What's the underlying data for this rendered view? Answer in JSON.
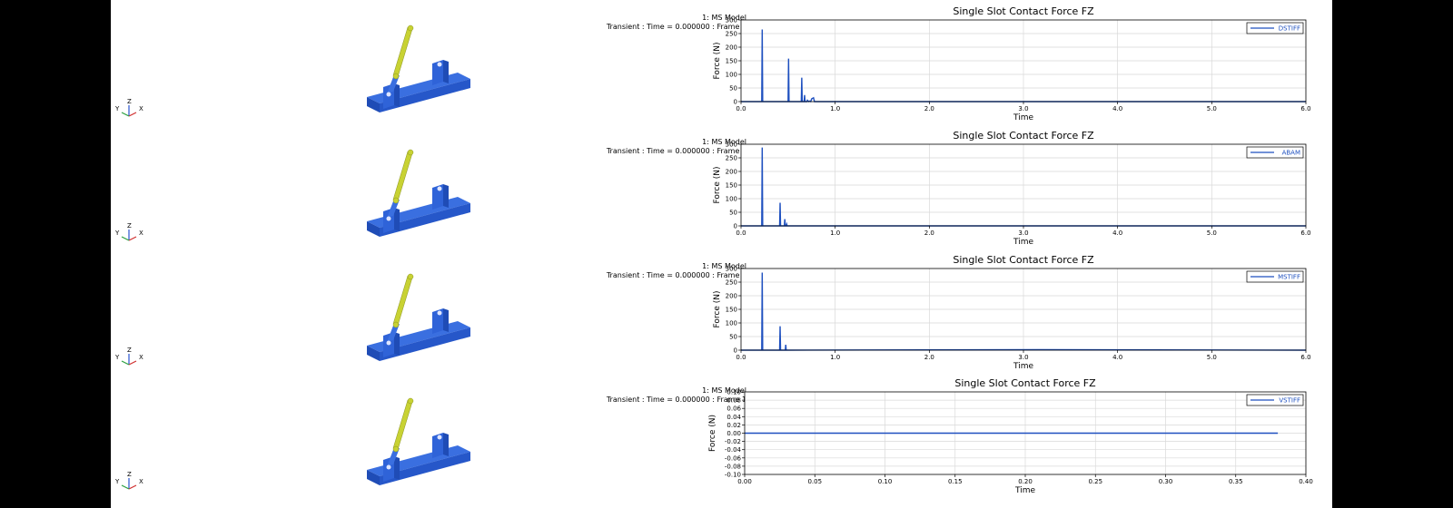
{
  "model_label": "1: MS Model",
  "frame_label": "Transient : Time = 0.000000 : Frame 1",
  "triad": {
    "z": "Z",
    "x": "X",
    "y": "Y"
  },
  "colors": {
    "series": "#1d4fbf",
    "base_blue": "#2f63d8",
    "link_yellow": "#c8d233",
    "grid": "#d9d9d9"
  },
  "chart_data": [
    {
      "type": "line",
      "title": "Single Slot Contact Force FZ",
      "xlabel": "Time",
      "ylabel": "Force (N)",
      "xlim": [
        0,
        6
      ],
      "ylim": [
        0,
        300
      ],
      "xticks": [
        0,
        1,
        2,
        3,
        4,
        5,
        6
      ],
      "xtick_labels": [
        "0.0",
        "1.0",
        "2.0",
        "3.0",
        "4.0",
        "5.0",
        "6.0"
      ],
      "yticks": [
        0,
        50,
        100,
        150,
        200,
        250,
        300
      ],
      "ytick_labels": [
        "0",
        "50",
        "100",
        "150",
        "200",
        "250",
        "300"
      ],
      "grid": true,
      "legend_position": "top-right",
      "series": [
        {
          "name": "DSTIFF",
          "x": [
            0,
            0.22,
            0.225,
            0.23,
            0.5,
            0.505,
            0.51,
            0.64,
            0.645,
            0.65,
            0.67,
            0.675,
            0.68,
            0.7,
            0.705,
            0.72,
            0.73,
            0.74,
            0.75,
            0.77,
            0.78,
            0.8,
            6.0
          ],
          "y": [
            0,
            0,
            265,
            0,
            0,
            158,
            0,
            0,
            88,
            0,
            0,
            24,
            0,
            0,
            5,
            0,
            2,
            0,
            10,
            14,
            0,
            0,
            0
          ]
        }
      ]
    },
    {
      "type": "line",
      "title": "Single Slot Contact Force FZ",
      "xlabel": "Time",
      "ylabel": "Force (N)",
      "xlim": [
        0,
        6
      ],
      "ylim": [
        0,
        300
      ],
      "xticks": [
        0,
        1,
        2,
        3,
        4,
        5,
        6
      ],
      "xtick_labels": [
        "0.0",
        "1.0",
        "2.0",
        "3.0",
        "4.0",
        "5.0",
        "6.0"
      ],
      "yticks": [
        0,
        50,
        100,
        150,
        200,
        250,
        300
      ],
      "ytick_labels": [
        "0",
        "50",
        "100",
        "150",
        "200",
        "250",
        "300"
      ],
      "grid": true,
      "legend_position": "top-right",
      "series": [
        {
          "name": "ABAM",
          "x": [
            0,
            0.22,
            0.225,
            0.23,
            0.41,
            0.415,
            0.42,
            0.46,
            0.465,
            0.47,
            0.48,
            0.485,
            0.49,
            6.0
          ],
          "y": [
            0,
            0,
            288,
            0,
            0,
            85,
            0,
            0,
            25,
            0,
            0,
            6,
            0,
            0
          ]
        }
      ]
    },
    {
      "type": "line",
      "title": "Single Slot Contact Force FZ",
      "xlabel": "Time",
      "ylabel": "Force (N)",
      "xlim": [
        0,
        6
      ],
      "ylim": [
        0,
        300
      ],
      "xticks": [
        0,
        1,
        2,
        3,
        4,
        5,
        6
      ],
      "xtick_labels": [
        "0.0",
        "1.0",
        "2.0",
        "3.0",
        "4.0",
        "5.0",
        "6.0"
      ],
      "yticks": [
        0,
        50,
        100,
        150,
        200,
        250,
        300
      ],
      "ytick_labels": [
        "0",
        "50",
        "100",
        "150",
        "200",
        "250",
        "300"
      ],
      "grid": true,
      "legend_position": "top-right",
      "series": [
        {
          "name": "MSTIFF",
          "x": [
            0,
            0.22,
            0.225,
            0.23,
            0.41,
            0.415,
            0.42,
            0.47,
            0.475,
            0.48,
            3.2,
            6.0
          ],
          "y": [
            0,
            0,
            285,
            0,
            0,
            88,
            0,
            0,
            20,
            0,
            2,
            0
          ]
        }
      ]
    },
    {
      "type": "line",
      "title": "Single Slot Contact Force FZ",
      "xlabel": "Time",
      "ylabel": "Force (N)",
      "xlim": [
        0,
        0.4
      ],
      "ylim": [
        -0.1,
        0.1
      ],
      "xticks": [
        0,
        0.05,
        0.1,
        0.15,
        0.2,
        0.25,
        0.3,
        0.35,
        0.4
      ],
      "xtick_labels": [
        "0.00",
        "0.05",
        "0.10",
        "0.15",
        "0.20",
        "0.25",
        "0.30",
        "0.35",
        "0.40"
      ],
      "yticks": [
        -0.1,
        -0.08,
        -0.06,
        -0.04,
        -0.02,
        0,
        0.02,
        0.04,
        0.06,
        0.08,
        0.1
      ],
      "ytick_labels": [
        "-0.10",
        "-0.08",
        "-0.06",
        "-0.04",
        "-0.02",
        "0.00",
        "0.02",
        "0.04",
        "0.06",
        "0.08",
        "0.10"
      ],
      "grid": true,
      "legend_position": "top-right",
      "series": [
        {
          "name": "VSTIFF",
          "x": [
            0,
            0.38
          ],
          "y": [
            0,
            0
          ]
        }
      ]
    }
  ]
}
